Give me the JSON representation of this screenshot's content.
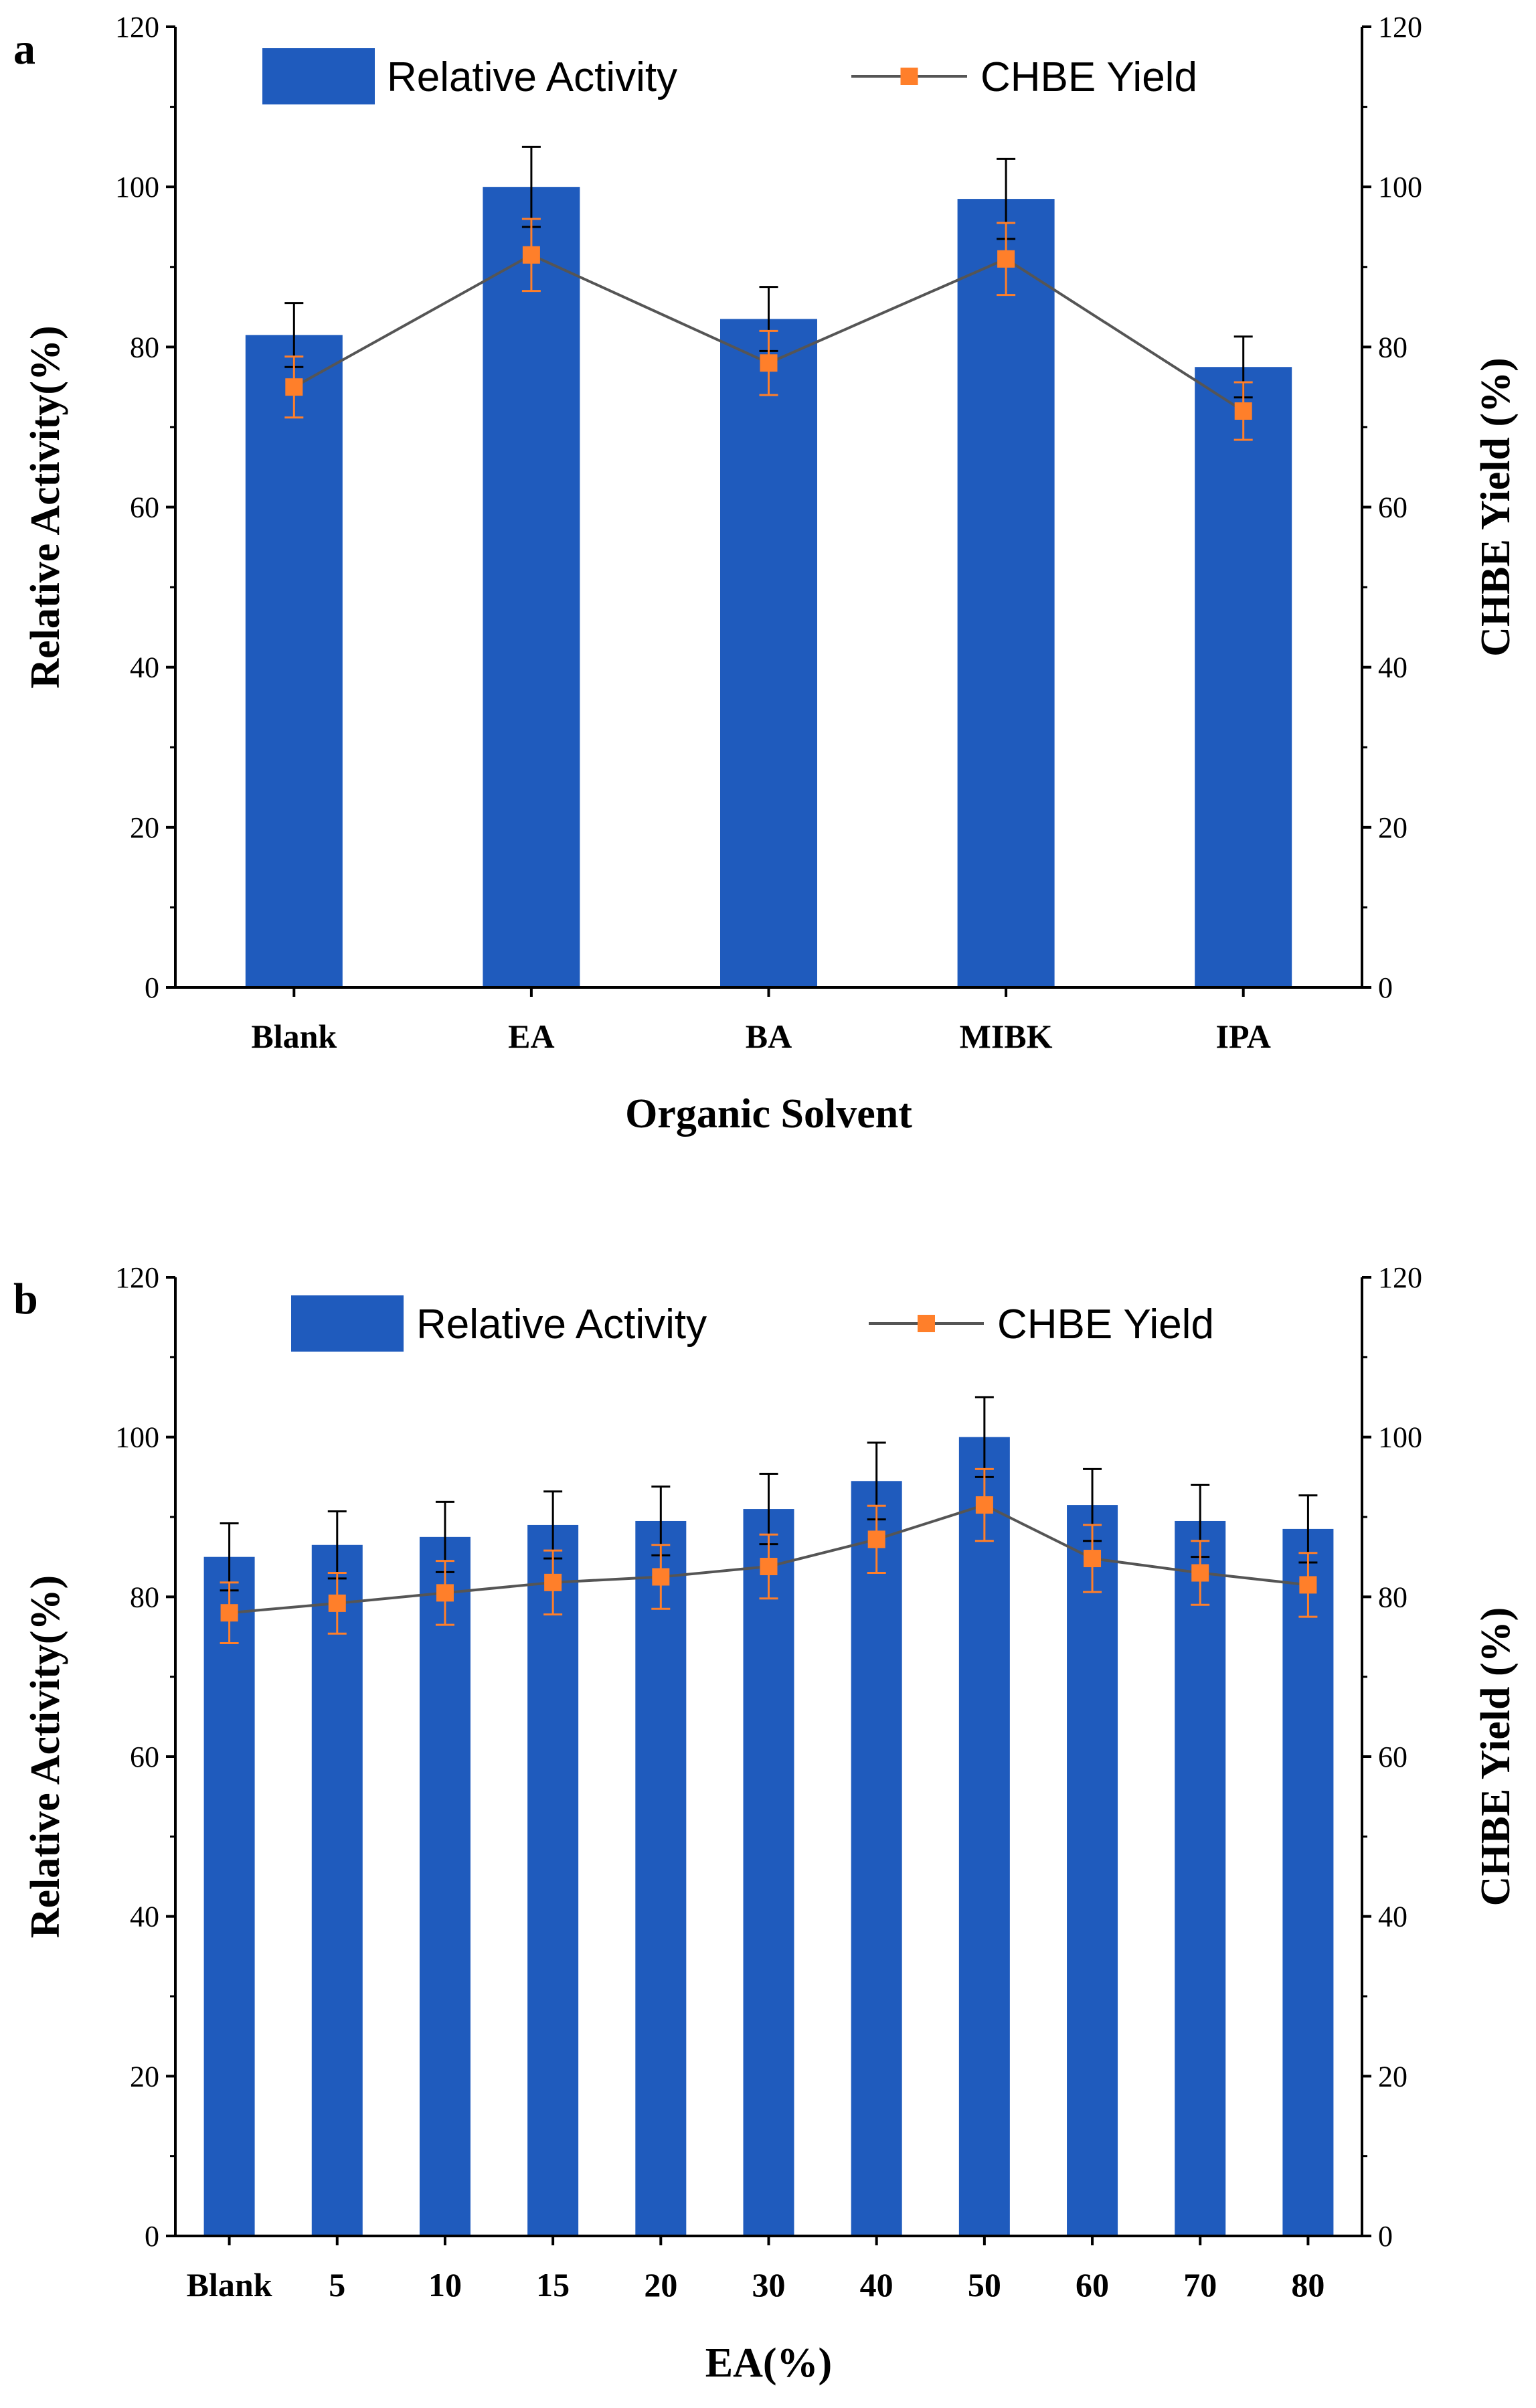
{
  "chart_data": [
    {
      "panel_label": "a",
      "type": "bar+line",
      "xlabel": "Organic Solvent",
      "ylabel_left": "Relative Activity(%)",
      "ylabel_right": "CHBE Yield (%)",
      "ylim": [
        0,
        120
      ],
      "yticks": [
        "0",
        "20",
        "40",
        "60",
        "80",
        "100",
        "120"
      ],
      "categories": [
        "Blank",
        "EA",
        "BA",
        "MIBK",
        "IPA"
      ],
      "legend": {
        "bar": "Relative Activity",
        "line": "CHBE Yield"
      },
      "series": [
        {
          "name": "Relative Activity",
          "kind": "bar",
          "values": [
            81.5,
            100,
            83.5,
            98.5,
            77.5
          ],
          "errors": [
            4,
            5,
            4,
            5,
            3.8
          ]
        },
        {
          "name": "CHBE Yield",
          "kind": "line",
          "values": [
            75,
            91.5,
            78,
            91,
            72
          ],
          "errors": [
            3.8,
            4.5,
            4,
            4.5,
            3.6
          ]
        }
      ],
      "colors": {
        "bar": "#1f5bbd",
        "line": "#555555",
        "marker": "#ff7f2a"
      }
    },
    {
      "panel_label": "b",
      "type": "bar+line",
      "xlabel": "EA(%)",
      "ylabel_left": "Relative Activity(%)",
      "ylabel_right": "CHBE Yield (%)",
      "ylim": [
        0,
        120
      ],
      "yticks": [
        "0",
        "20",
        "40",
        "60",
        "80",
        "100",
        "120"
      ],
      "categories": [
        "Blank",
        "5",
        "10",
        "15",
        "20",
        "30",
        "40",
        "50",
        "60",
        "70",
        "80"
      ],
      "legend": {
        "bar": "Relative Activity",
        "line": "CHBE Yield"
      },
      "series": [
        {
          "name": "Relative Activity",
          "kind": "bar",
          "values": [
            85,
            86.5,
            87.5,
            89,
            89.5,
            91,
            94.5,
            100,
            91.5,
            89.5,
            88.5
          ],
          "errors": [
            4.2,
            4.2,
            4.4,
            4.2,
            4.3,
            4.4,
            4.8,
            5,
            4.5,
            4.5,
            4.2
          ]
        },
        {
          "name": "CHBE Yield",
          "kind": "line",
          "values": [
            78,
            79.2,
            80.5,
            81.8,
            82.5,
            83.8,
            87.2,
            91.5,
            84.8,
            83,
            81.5
          ],
          "errors": [
            3.8,
            3.8,
            4,
            4,
            4,
            4,
            4.2,
            4.5,
            4.2,
            4,
            4
          ]
        }
      ],
      "colors": {
        "bar": "#1f5bbd",
        "line": "#555555",
        "marker": "#ff7f2a"
      }
    }
  ]
}
